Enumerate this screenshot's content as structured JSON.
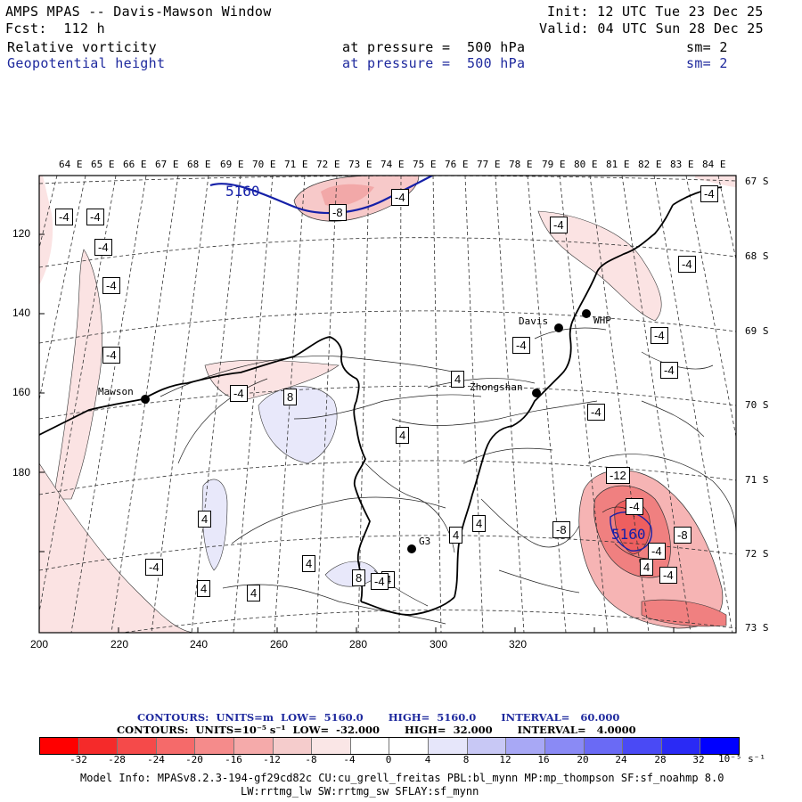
{
  "header": {
    "title": "AMPS MPAS -- Davis-Mawson Window",
    "fcst": "Fcst:  112 h",
    "init": "Init: 12 UTC Tue 23 Dec 25",
    "valid": "Valid: 04 UTC Sun 28 Dec 25",
    "field1": "Relative vorticity",
    "field1_level": "at pressure =  500 hPa",
    "field1_sm": "sm= 2",
    "field2": "Geopotential height",
    "field2_level": "at pressure =  500 hPa",
    "field2_sm": "sm= 2"
  },
  "map": {
    "lon_labels": [
      "64 E",
      "65 E",
      "66 E",
      "67 E",
      "68 E",
      "69 E",
      "70 E",
      "71 E",
      "72 E",
      "73 E",
      "74 E",
      "75 E",
      "76 E",
      "77 E",
      "78 E",
      "79 E",
      "80 E",
      "81 E",
      "82 E",
      "83 E",
      "84 E"
    ],
    "lat_labels": [
      "67 S",
      "68 S",
      "69 S",
      "70 S",
      "71 S",
      "72 S",
      "73 S"
    ],
    "x_ticks": [
      "200",
      "220",
      "240",
      "260",
      "280",
      "300",
      "320"
    ],
    "y_ticks": [
      "120",
      "140",
      "160",
      "180"
    ],
    "stations": [
      {
        "name": "Mawson"
      },
      {
        "name": "Davis"
      },
      {
        "name": "WHP"
      },
      {
        "name": "Zhongshan"
      },
      {
        "name": "G3"
      }
    ],
    "height_labels": [
      "5160",
      "5160"
    ],
    "vort_labels": [
      "-4",
      "-4",
      "-4",
      "-4",
      "-4",
      "-4",
      "-4",
      "-8",
      "-4",
      "-4",
      "-4",
      "-4",
      "-4",
      "-4",
      "4",
      "-4",
      "8",
      "4",
      "4",
      "4",
      "-12",
      "-8",
      "-4",
      "-4",
      "4",
      "4",
      "-8",
      "8",
      "4",
      "4",
      "-4",
      "4",
      "-4",
      "4",
      "-4"
    ]
  },
  "legend": {
    "height_line": "CONTOURS:  UNITS=m  LOW=  5160.0       HIGH=  5160.0       INTERVAL=   60.000",
    "vort_line": "CONTOURS:  UNITS=10⁻⁵ s⁻¹  LOW=  -32.000       HIGH=  32.000       INTERVAL=   4.0000"
  },
  "colorbar": {
    "labels": [
      "-32",
      "-28",
      "-24",
      "-20",
      "-16",
      "-12",
      "-8",
      "-4",
      "0",
      "4",
      "8",
      "12",
      "16",
      "20",
      "24",
      "28",
      "32"
    ],
    "unit": "10⁻⁵ s⁻¹",
    "colors": [
      "#ff0000",
      "#f52a2a",
      "#f54a4a",
      "#f56a6a",
      "#f58b8b",
      "#f5aaaa",
      "#f5cccc",
      "#fae6e6",
      "#ffffff",
      "#ffffff",
      "#e6e6fa",
      "#c8c8f5",
      "#a8a8f5",
      "#8a8af5",
      "#6a6af5",
      "#4a4af5",
      "#2a2af5",
      "#0000ff"
    ]
  },
  "model_info": {
    "line1": "Model Info: MPASv8.2.3-194-gf29cd82c CU:cu_grell_freitas PBL:bl_mynn MP:mp_thompson SF:sf_noahmp 8.0",
    "line2": "LW:rrtmg_lw SW:rrtmg_sw SFLAY:sf_mynn"
  }
}
